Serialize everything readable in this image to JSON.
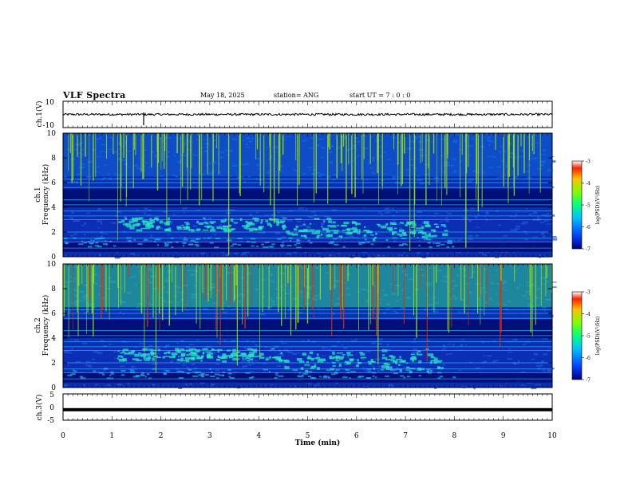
{
  "header": {
    "title": "VLF Spectra",
    "date": "May 18, 2025",
    "station": "station= ANG",
    "start_ut": "start UT =   7 : 0  : 0"
  },
  "chart_data": [
    {
      "type": "line",
      "panel": "ch1-waveform",
      "ylabel": "ch.1(V)",
      "ylim": [
        -10,
        10
      ],
      "yticks": [
        "10",
        "-10"
      ],
      "baseline": 0,
      "xlim": [
        0,
        10
      ]
    },
    {
      "type": "heatmap",
      "panel": "ch1-spectrogram",
      "ylabel_line1": "ch.1",
      "ylabel_line2": "Frequency (kHz)",
      "ylim": [
        0,
        10
      ],
      "yticks": [
        "0",
        "2",
        "4",
        "6",
        "8",
        "10"
      ],
      "xlim": [
        0,
        10
      ],
      "colorbar": {
        "label": "log(PSD)(V²/Hz)",
        "range": [
          -7,
          -3
        ],
        "ticks": [
          "-3",
          "-4",
          "-5",
          "-6",
          "-7"
        ]
      }
    },
    {
      "type": "heatmap",
      "panel": "ch2-spectrogram",
      "ylabel_line1": "ch.2",
      "ylabel_line2": "Frequency (kHz)",
      "ylim": [
        0,
        10
      ],
      "yticks": [
        "0",
        "2",
        "4",
        "6",
        "8",
        "10"
      ],
      "xlim": [
        0,
        10
      ],
      "colorbar": {
        "label": "log(PSD)(V²/Hz)",
        "range": [
          -7,
          -3
        ],
        "ticks": [
          "-3",
          "-4",
          "-5",
          "-6",
          "-7"
        ]
      }
    },
    {
      "type": "line",
      "panel": "ch3-waveform",
      "ylabel": "ch.3(V)",
      "ylim": [
        -5,
        5
      ],
      "yticks": [
        "5",
        "0",
        "-5"
      ],
      "baseline": -1.0,
      "xlim": [
        0,
        10
      ]
    }
  ],
  "xaxis": {
    "label": "Time (min)",
    "ticks": [
      "0",
      "1",
      "2",
      "3",
      "4",
      "5",
      "6",
      "7",
      "8",
      "9",
      "10"
    ]
  },
  "colors": {
    "background_deep": "#000a6e",
    "background_mid": "#0a2eb4",
    "emission": "#27e6c4",
    "spike": "#9fe600",
    "hot": "#e63000"
  }
}
